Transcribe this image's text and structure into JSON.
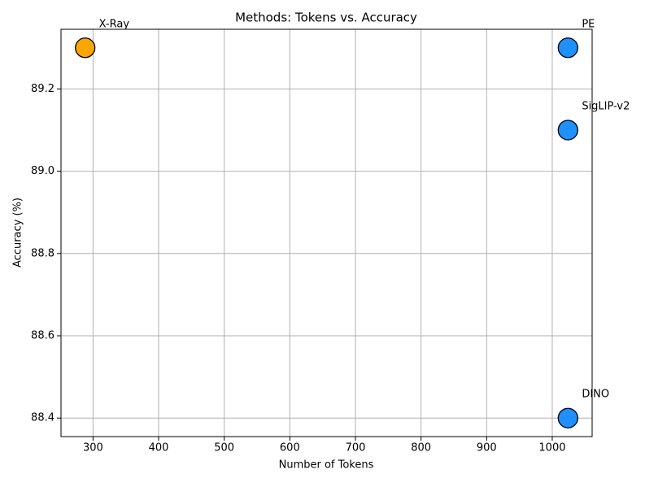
{
  "chart_data": {
    "type": "scatter",
    "title": "Methods: Tokens vs. Accuracy",
    "x_label": "Number of Tokens",
    "y_label": "Accuracy (%)",
    "labels": [
      "X-Ray",
      "PE",
      "SigLIP-v2",
      "DINO"
    ],
    "x": [
      288,
      1024,
      1024,
      1024
    ],
    "values": [
      89.3,
      89.3,
      89.1,
      88.4
    ],
    "colors": [
      "#ffa500",
      "#1e90ff",
      "#1e90ff",
      "#1e90ff"
    ],
    "xlim": [
      251.2,
      1060.8
    ],
    "ylim": [
      88.355,
      89.345
    ],
    "xticks": [
      300,
      400,
      500,
      600,
      700,
      800,
      900,
      1000
    ],
    "yticks": [
      88.4,
      88.6,
      88.8,
      {
        "value": 89,
        "label": "89.0"
      },
      89.2
    ],
    "grid": true
  }
}
